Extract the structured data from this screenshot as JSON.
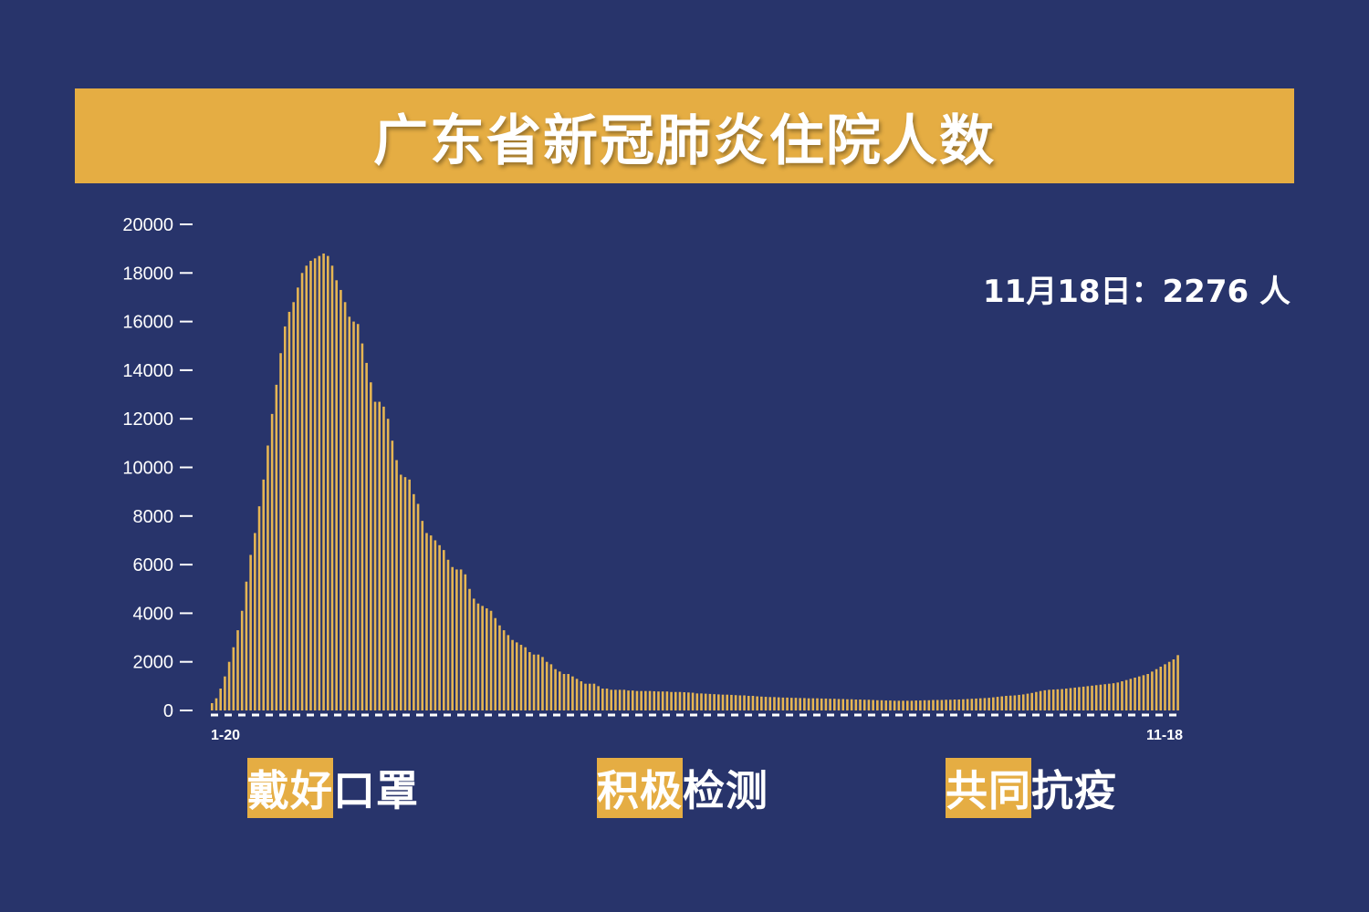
{
  "banner": {
    "title": "广东省新冠肺炎住院人数"
  },
  "callout": {
    "text": "11月18日：2276 人"
  },
  "slogans": [
    {
      "highlight": "戴好",
      "rest": "口罩"
    },
    {
      "highlight": "积极",
      "rest": "检测"
    },
    {
      "highlight": "共同",
      "rest": "抗疫"
    }
  ],
  "colors": {
    "background": "#28346b",
    "accent": "#e5ad43",
    "bar": "#e5b553",
    "text": "#ffffff"
  },
  "chart_data": {
    "type": "bar",
    "title": "广东省新冠肺炎住院人数",
    "x_first_label": "1-20",
    "x_last_label": "11-18",
    "ylim": [
      0,
      20000
    ],
    "yticks": [
      "0",
      "2000",
      "4000",
      "6000",
      "8000",
      "10000",
      "12000",
      "14000",
      "16000",
      "18000",
      "20000"
    ],
    "values": [
      300,
      500,
      900,
      1400,
      2000,
      2600,
      3300,
      4100,
      5300,
      6400,
      7300,
      8400,
      9500,
      10900,
      12200,
      13400,
      14700,
      15800,
      16400,
      16800,
      17400,
      18000,
      18300,
      18500,
      18600,
      18700,
      18800,
      18700,
      18300,
      17700,
      17300,
      16800,
      16200,
      16000,
      15900,
      15100,
      14300,
      13500,
      12700,
      12700,
      12500,
      12000,
      11100,
      10300,
      9700,
      9600,
      9500,
      8900,
      8500,
      7800,
      7300,
      7200,
      7000,
      6800,
      6600,
      6200,
      5900,
      5800,
      5800,
      5600,
      5000,
      4600,
      4400,
      4300,
      4200,
      4100,
      3800,
      3500,
      3300,
      3100,
      2900,
      2800,
      2700,
      2600,
      2400,
      2300,
      2300,
      2200,
      2000,
      1900,
      1700,
      1600,
      1500,
      1500,
      1400,
      1300,
      1200,
      1100,
      1100,
      1100,
      1000,
      900,
      900,
      850,
      850,
      850,
      850,
      820,
      820,
      800,
      800,
      800,
      800,
      790,
      780,
      780,
      780,
      760,
      760,
      760,
      750,
      740,
      730,
      700,
      700,
      690,
      680,
      670,
      660,
      650,
      650,
      640,
      630,
      620,
      620,
      600,
      600,
      580,
      570,
      560,
      550,
      550,
      540,
      530,
      530,
      520,
      520,
      510,
      510,
      500,
      500,
      500,
      490,
      490,
      480,
      480,
      470,
      470,
      460,
      460,
      450,
      450,
      440,
      440,
      430,
      420,
      420,
      410,
      410,
      400,
      400,
      400,
      400,
      400,
      410,
      410,
      420,
      420,
      430,
      430,
      430,
      440,
      440,
      450,
      450,
      460,
      470,
      480,
      490,
      500,
      510,
      520,
      540,
      560,
      580,
      600,
      610,
      620,
      640,
      660,
      690,
      720,
      760,
      800,
      830,
      850,
      860,
      870,
      880,
      900,
      920,
      940,
      960,
      980,
      1000,
      1020,
      1040,
      1060,
      1080,
      1100,
      1120,
      1150,
      1200,
      1250,
      1300,
      1350,
      1400,
      1450,
      1500,
      1600,
      1700,
      1800,
      1900,
      2000,
      2100,
      2276
    ]
  }
}
